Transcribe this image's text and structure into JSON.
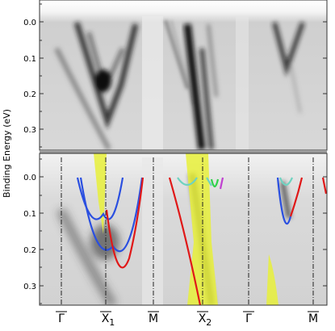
{
  "figure": {
    "ylabel": "Binding Energy (eV)",
    "y_ticks": [
      "0.0",
      "0.1",
      "0.2",
      "0.3"
    ],
    "k_labels": [
      {
        "main": "Γ",
        "sub": ""
      },
      {
        "main": "X",
        "sub": "1"
      },
      {
        "main": "M",
        "sub": ""
      },
      {
        "main": "X",
        "sub": "2"
      },
      {
        "main": "Γ",
        "sub": ""
      },
      {
        "main": "M",
        "sub": ""
      }
    ],
    "colors": {
      "band_red": "#e01818",
      "band_blue": "#2a4fe0",
      "band_cyan": "#6fd3c0",
      "band_green": "#2fd24a",
      "band_magenta": "#c040d0",
      "surface_yellow": "#e8f03a",
      "frame": "#333333"
    }
  }
}
